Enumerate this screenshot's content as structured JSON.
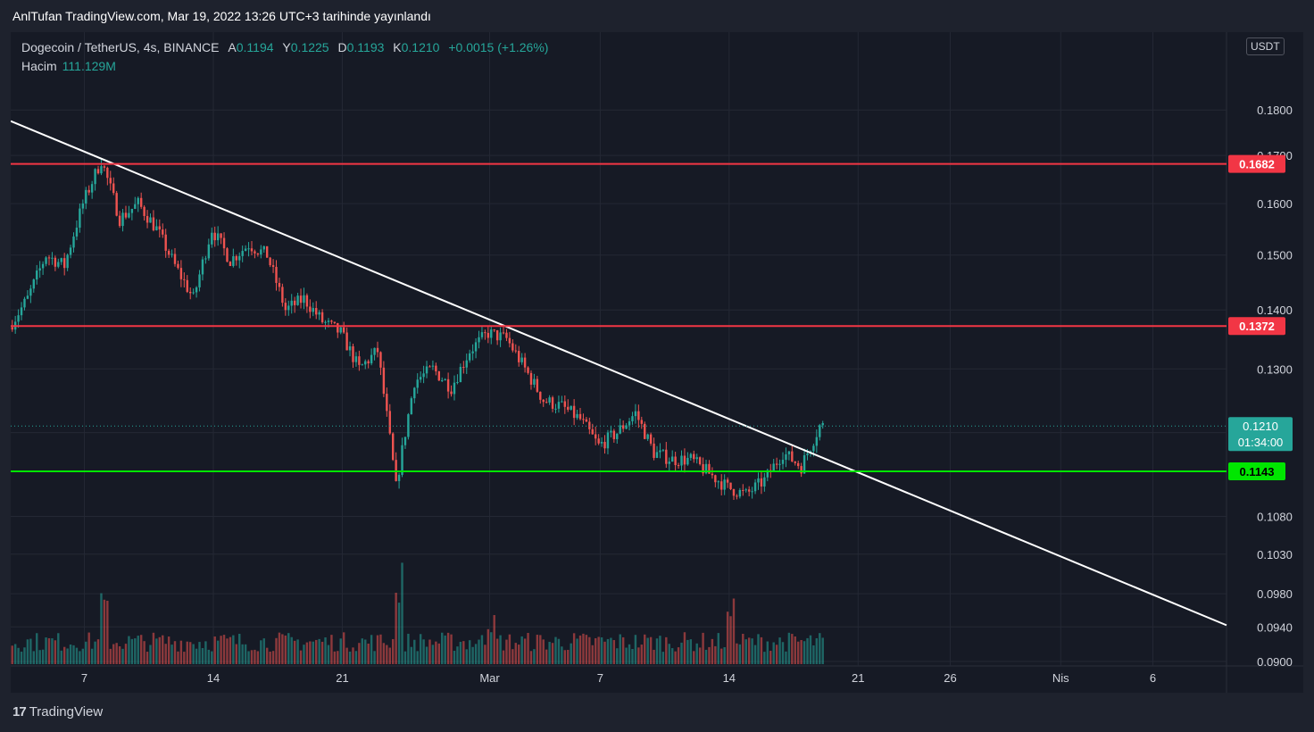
{
  "header": {
    "publish_line": "AnlTufan TradingView.com, Mar 19, 2022 13:26 UTC+3 tarihinde yayınlandı"
  },
  "legend": {
    "symbol": "Dogecoin / TetherUS, 4s, BINANCE",
    "open_label": "A",
    "open": "0.1194",
    "high_label": "Y",
    "high": "0.1225",
    "low_label": "D",
    "low": "0.1193",
    "close_label": "K",
    "close": "0.1210",
    "change": "+0.0015 (+1.26%)",
    "volume_label": "Hacim",
    "volume": "111.129M"
  },
  "currency_button": "USDT",
  "brand": {
    "name": "TradingView",
    "logo": "17"
  },
  "colors": {
    "up": "#26a69a",
    "down": "#ef5350",
    "resistance": "#f23645",
    "support": "#00e600",
    "trendline": "#ffffff",
    "price_badge": "#26a69a"
  },
  "chart_data": {
    "type": "candlestick",
    "title": "Dogecoin / TetherUS, 4s, BINANCE",
    "interval": "4h",
    "y_ticks": [
      "0.1800",
      "0.1700",
      "0.1600",
      "0.1500",
      "0.1400",
      "0.1300",
      "0.1200",
      "0.1080",
      "0.1030",
      "0.0980",
      "0.0940",
      "0.0900"
    ],
    "x_ticks": [
      "7",
      "14",
      "21",
      "Mar",
      "7",
      "14",
      "21",
      "26",
      "Nis",
      "6"
    ],
    "x_tick_dates": [
      "2022-02-07",
      "2022-02-14",
      "2022-02-21",
      "2022-03-01",
      "2022-03-07",
      "2022-03-14",
      "2022-03-21",
      "2022-03-26",
      "2022-04-01",
      "2022-04-06"
    ],
    "x_range": [
      "2022-02-03",
      "2022-04-10"
    ],
    "y_scale": "log",
    "y_range": [
      0.0895,
      0.1985
    ],
    "grid": true,
    "horizontal_levels": [
      {
        "value": 0.1682,
        "label": "0.1682",
        "color": "#f23645"
      },
      {
        "value": 0.1372,
        "label": "0.1372",
        "color": "#f23645"
      },
      {
        "value": 0.1143,
        "label": "0.1143",
        "color": "#00e600"
      }
    ],
    "trendline": {
      "start": {
        "date": "2022-02-03",
        "value": 0.1775
      },
      "end": {
        "date": "2022-04-10",
        "value": 0.0942
      }
    },
    "last_price": {
      "value": 0.121,
      "label": "0.1210",
      "countdown": "01:34:00"
    },
    "price_path": [
      [
        "2022-02-03",
        0.137
      ],
      [
        "2022-02-04",
        0.142
      ],
      [
        "2022-02-05",
        0.15
      ],
      [
        "2022-02-06",
        0.148
      ],
      [
        "2022-02-07",
        0.16
      ],
      [
        "2022-02-08",
        0.169
      ],
      [
        "2022-02-09",
        0.157
      ],
      [
        "2022-02-10",
        0.16
      ],
      [
        "2022-02-11",
        0.155
      ],
      [
        "2022-02-12",
        0.148
      ],
      [
        "2022-02-13",
        0.142
      ],
      [
        "2022-02-14",
        0.155
      ],
      [
        "2022-02-15",
        0.149
      ],
      [
        "2022-02-16",
        0.152
      ],
      [
        "2022-02-17",
        0.15
      ],
      [
        "2022-02-18",
        0.14
      ],
      [
        "2022-02-19",
        0.142
      ],
      [
        "2022-02-20",
        0.138
      ],
      [
        "2022-02-21",
        0.136
      ],
      [
        "2022-02-22",
        0.13
      ],
      [
        "2022-02-23",
        0.133
      ],
      [
        "2022-02-24",
        0.112
      ],
      [
        "2022-02-25",
        0.128
      ],
      [
        "2022-02-26",
        0.13
      ],
      [
        "2022-02-27",
        0.127
      ],
      [
        "2022-02-28",
        0.133
      ],
      [
        "2022-03-01",
        0.136
      ],
      [
        "2022-03-02",
        0.135
      ],
      [
        "2022-03-03",
        0.13
      ],
      [
        "2022-03-04",
        0.125
      ],
      [
        "2022-03-05",
        0.124
      ],
      [
        "2022-03-06",
        0.122
      ],
      [
        "2022-03-07",
        0.118
      ],
      [
        "2022-03-08",
        0.12
      ],
      [
        "2022-03-09",
        0.123
      ],
      [
        "2022-03-10",
        0.117
      ],
      [
        "2022-03-11",
        0.116
      ],
      [
        "2022-03-12",
        0.116
      ],
      [
        "2022-03-13",
        0.114
      ],
      [
        "2022-03-14",
        0.112
      ],
      [
        "2022-03-15",
        0.111
      ],
      [
        "2022-03-16",
        0.113
      ],
      [
        "2022-03-17",
        0.117
      ],
      [
        "2022-03-18",
        0.115
      ],
      [
        "2022-03-19",
        0.121
      ]
    ],
    "volume": {
      "unit": "M",
      "spikes": [
        {
          "date": "2022-02-08",
          "value": 330
        },
        {
          "date": "2022-02-24",
          "value": 470
        },
        {
          "date": "2022-03-01",
          "value": 250
        },
        {
          "date": "2022-03-14",
          "value": 320
        }
      ],
      "typical": 111
    }
  }
}
